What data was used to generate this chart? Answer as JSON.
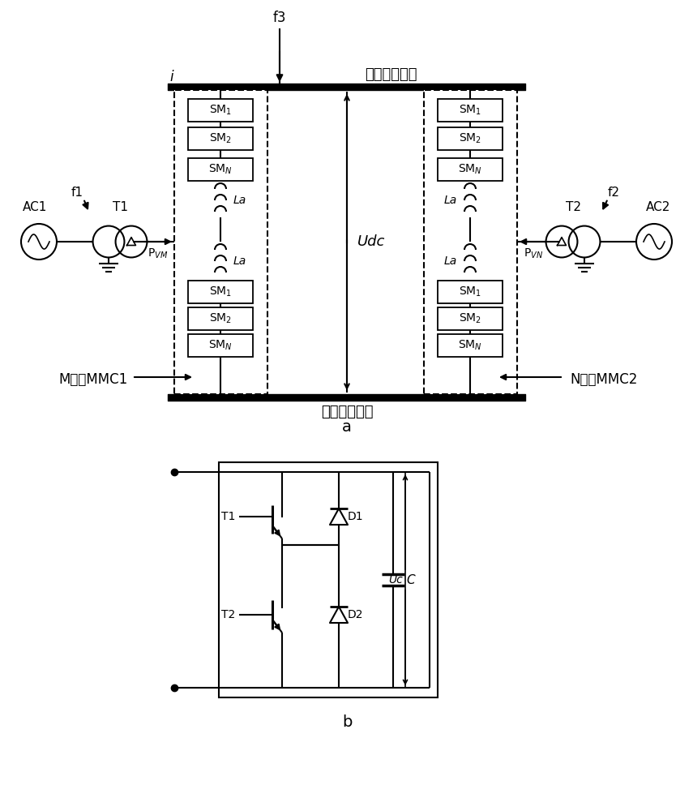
{
  "bg_color": "#ffffff",
  "fig_width": 8.55,
  "fig_height": 10.0,
  "pos_dc_label": "正极直流线路",
  "neg_dc_label": "负极直流线路",
  "udc_label": "Udc",
  "label_a": "a",
  "label_b": "b"
}
